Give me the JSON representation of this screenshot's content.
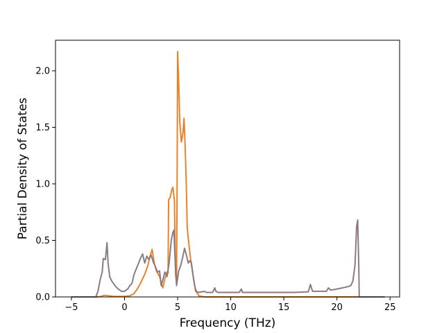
{
  "chart_data": {
    "type": "line",
    "title": "",
    "xlabel": "Frequency (THz)",
    "ylabel": "Partial Density of States",
    "xlim": [
      -6.5,
      25.9
    ],
    "ylim": [
      0.0,
      2.27
    ],
    "xticks": [
      {
        "value": -5,
        "label": "−5"
      },
      {
        "value": 0,
        "label": "0"
      },
      {
        "value": 5,
        "label": "5"
      },
      {
        "value": 10,
        "label": "10"
      },
      {
        "value": 15,
        "label": "15"
      },
      {
        "value": 20,
        "label": "20"
      },
      {
        "value": 25,
        "label": "25"
      }
    ],
    "yticks": [
      {
        "value": 0.0,
        "label": "0.0"
      },
      {
        "value": 0.5,
        "label": "0.5"
      },
      {
        "value": 1.0,
        "label": "1.0"
      },
      {
        "value": 1.5,
        "label": "1.5"
      },
      {
        "value": 2.0,
        "label": "2.0"
      }
    ],
    "grid": false,
    "legend": "none",
    "series": [
      {
        "color": "#e8832a",
        "points": [
          [
            -5.0,
            0.0
          ],
          [
            -2.6,
            0.0
          ],
          [
            -2.2,
            0.005
          ],
          [
            -1.9,
            0.015
          ],
          [
            -1.5,
            0.01
          ],
          [
            -1.0,
            0.005
          ],
          [
            0.0,
            0.005
          ],
          [
            0.5,
            0.01
          ],
          [
            0.9,
            0.03
          ],
          [
            1.2,
            0.07
          ],
          [
            1.5,
            0.12
          ],
          [
            1.9,
            0.2
          ],
          [
            2.2,
            0.28
          ],
          [
            2.4,
            0.36
          ],
          [
            2.6,
            0.42
          ],
          [
            2.8,
            0.3
          ],
          [
            3.0,
            0.23
          ],
          [
            3.3,
            0.18
          ],
          [
            3.6,
            0.08
          ],
          [
            3.8,
            0.16
          ],
          [
            4.0,
            0.22
          ],
          [
            4.1,
            0.21
          ],
          [
            4.15,
            0.86
          ],
          [
            4.3,
            0.88
          ],
          [
            4.45,
            0.95
          ],
          [
            4.55,
            0.97
          ],
          [
            4.7,
            0.85
          ],
          [
            4.8,
            0.2
          ],
          [
            4.9,
            0.12
          ],
          [
            4.95,
            1.0
          ],
          [
            5.0,
            2.17
          ],
          [
            5.1,
            1.9
          ],
          [
            5.2,
            1.55
          ],
          [
            5.35,
            1.37
          ],
          [
            5.5,
            1.45
          ],
          [
            5.6,
            1.58
          ],
          [
            5.7,
            1.35
          ],
          [
            5.8,
            1.05
          ],
          [
            5.9,
            0.62
          ],
          [
            6.0,
            0.52
          ],
          [
            6.2,
            0.35
          ],
          [
            6.4,
            0.22
          ],
          [
            6.6,
            0.1
          ],
          [
            6.8,
            0.04
          ],
          [
            7.0,
            0.01
          ],
          [
            7.5,
            0.0
          ],
          [
            24.5,
            0.0
          ]
        ]
      },
      {
        "color": "#8b7a84",
        "points": [
          [
            -5.0,
            0.0
          ],
          [
            -2.7,
            0.0
          ],
          [
            -2.5,
            0.05
          ],
          [
            -2.3,
            0.15
          ],
          [
            -2.1,
            0.22
          ],
          [
            -2.0,
            0.34
          ],
          [
            -1.8,
            0.33
          ],
          [
            -1.65,
            0.48
          ],
          [
            -1.55,
            0.3
          ],
          [
            -1.4,
            0.18
          ],
          [
            -1.2,
            0.14
          ],
          [
            -0.9,
            0.1
          ],
          [
            -0.6,
            0.07
          ],
          [
            -0.3,
            0.05
          ],
          [
            0.0,
            0.05
          ],
          [
            0.3,
            0.07
          ],
          [
            0.5,
            0.1
          ],
          [
            0.7,
            0.12
          ],
          [
            0.9,
            0.2
          ],
          [
            1.2,
            0.27
          ],
          [
            1.5,
            0.34
          ],
          [
            1.7,
            0.38
          ],
          [
            1.9,
            0.3
          ],
          [
            2.1,
            0.36
          ],
          [
            2.3,
            0.33
          ],
          [
            2.5,
            0.37
          ],
          [
            2.7,
            0.31
          ],
          [
            2.9,
            0.27
          ],
          [
            3.1,
            0.22
          ],
          [
            3.3,
            0.23
          ],
          [
            3.45,
            0.1
          ],
          [
            3.6,
            0.15
          ],
          [
            3.8,
            0.22
          ],
          [
            4.0,
            0.18
          ],
          [
            4.2,
            0.3
          ],
          [
            4.4,
            0.5
          ],
          [
            4.55,
            0.57
          ],
          [
            4.65,
            0.59
          ],
          [
            4.75,
            0.35
          ],
          [
            4.9,
            0.1
          ],
          [
            5.1,
            0.23
          ],
          [
            5.3,
            0.28
          ],
          [
            5.5,
            0.36
          ],
          [
            5.65,
            0.43
          ],
          [
            5.8,
            0.38
          ],
          [
            6.0,
            0.3
          ],
          [
            6.15,
            0.32
          ],
          [
            6.3,
            0.3
          ],
          [
            6.5,
            0.16
          ],
          [
            6.7,
            0.05
          ],
          [
            7.0,
            0.04
          ],
          [
            7.5,
            0.05
          ],
          [
            7.7,
            0.04
          ],
          [
            8.3,
            0.04
          ],
          [
            8.5,
            0.08
          ],
          [
            8.6,
            0.05
          ],
          [
            8.8,
            0.04
          ],
          [
            10.8,
            0.04
          ],
          [
            11.0,
            0.07
          ],
          [
            11.1,
            0.04
          ],
          [
            14.0,
            0.04
          ],
          [
            16.0,
            0.04
          ],
          [
            17.3,
            0.045
          ],
          [
            17.5,
            0.11
          ],
          [
            17.7,
            0.05
          ],
          [
            19.0,
            0.05
          ],
          [
            19.2,
            0.08
          ],
          [
            19.4,
            0.06
          ],
          [
            20.0,
            0.07
          ],
          [
            20.5,
            0.08
          ],
          [
            21.0,
            0.09
          ],
          [
            21.3,
            0.1
          ],
          [
            21.5,
            0.14
          ],
          [
            21.7,
            0.28
          ],
          [
            21.85,
            0.62
          ],
          [
            21.95,
            0.68
          ],
          [
            22.05,
            0.3
          ],
          [
            22.1,
            0.0
          ],
          [
            24.5,
            0.0
          ]
        ]
      }
    ]
  }
}
